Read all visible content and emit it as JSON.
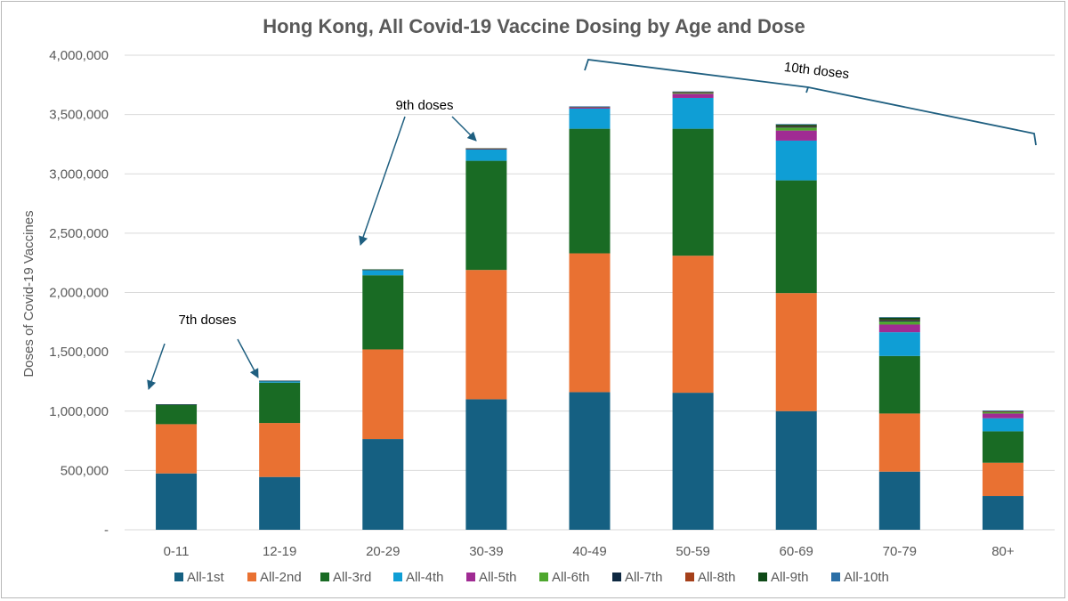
{
  "chart_data": {
    "type": "bar",
    "stacked": true,
    "title": "Hong Kong, All Covid-19 Vaccine Dosing by Age and Dose",
    "xlabel": "",
    "ylabel": "Doses of Covid-19 Vaccines",
    "ylim": [
      0,
      4000000
    ],
    "yticks": [
      0,
      500000,
      1000000,
      1500000,
      2000000,
      2500000,
      3000000,
      3500000,
      4000000
    ],
    "ytick_labels": [
      "-",
      "500,000",
      "1,000,000",
      "1,500,000",
      "2,000,000",
      "2,500,000",
      "3,000,000",
      "3,500,000",
      "4,000,000"
    ],
    "grid": true,
    "legend_position": "bottom",
    "categories": [
      "0-11",
      "12-19",
      "20-29",
      "30-39",
      "40-49",
      "50-59",
      "60-69",
      "70-79",
      "80+"
    ],
    "series": [
      {
        "name": "All-1st",
        "color": "#156082",
        "values": [
          475000,
          445000,
          765000,
          1100000,
          1160000,
          1155000,
          1000000,
          490000,
          285000
        ]
      },
      {
        "name": "All-2nd",
        "color": "#E97132",
        "values": [
          415000,
          455000,
          755000,
          1090000,
          1170000,
          1155000,
          995000,
          490000,
          280000
        ]
      },
      {
        "name": "All-3rd",
        "color": "#196B24",
        "values": [
          165000,
          340000,
          625000,
          920000,
          1050000,
          1070000,
          950000,
          485000,
          265000
        ]
      },
      {
        "name": "All-4th",
        "color": "#0F9ED5",
        "values": [
          2000,
          15000,
          45000,
          95000,
          170000,
          260000,
          335000,
          200000,
          110000
        ]
      },
      {
        "name": "All-5th",
        "color": "#A02B93",
        "values": [
          500,
          1000,
          3000,
          6000,
          10000,
          35000,
          85000,
          65000,
          40000
        ]
      },
      {
        "name": "All-6th",
        "color": "#4EA72E",
        "values": [
          200,
          300,
          1000,
          2000,
          4000,
          8000,
          25000,
          25000,
          12000
        ]
      },
      {
        "name": "All-7th",
        "color": "#0E2841",
        "values": [
          100,
          200,
          500,
          1000,
          2000,
          4000,
          10000,
          12000,
          5000
        ]
      },
      {
        "name": "All-8th",
        "color": "#A5401A",
        "values": [
          0,
          0,
          200,
          300,
          600,
          1000,
          2000,
          3000,
          1500
        ]
      },
      {
        "name": "All-9th",
        "color": "#0E4A17",
        "values": [
          0,
          0,
          100,
          200,
          1500,
          5000,
          15000,
          20000,
          5000
        ]
      },
      {
        "name": "All-10th",
        "color": "#2A6EA6",
        "values": [
          0,
          0,
          0,
          0,
          800,
          1000,
          2000,
          2000,
          500
        ]
      }
    ],
    "annotations": [
      "7th doses",
      "9th doses",
      "10th doses"
    ]
  }
}
